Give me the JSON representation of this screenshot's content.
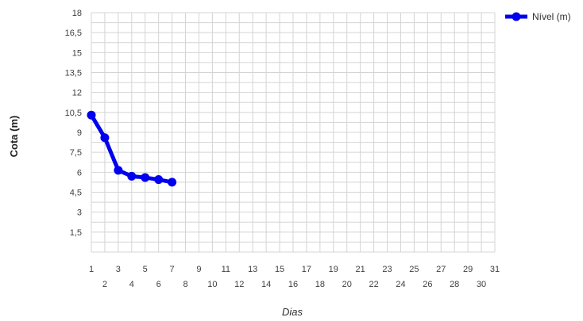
{
  "chart_data": {
    "type": "line",
    "title": "",
    "xlabel": "Dias",
    "ylabel": "Cota (m)",
    "xlim": [
      1,
      31
    ],
    "ylim": [
      0,
      18
    ],
    "grid": true,
    "legend_position": "top-right",
    "x_ticks_upper": [
      "1",
      "3",
      "5",
      "7",
      "9",
      "11",
      "13",
      "15",
      "17",
      "19",
      "21",
      "23",
      "25",
      "27",
      "29",
      "31"
    ],
    "x_ticks_lower": [
      "2",
      "4",
      "6",
      "8",
      "10",
      "12",
      "14",
      "16",
      "18",
      "20",
      "22",
      "24",
      "26",
      "28",
      "30"
    ],
    "y_ticks": [
      "1,5",
      "3",
      "4,5",
      "6",
      "7,5",
      "9",
      "10,5",
      "12",
      "13,5",
      "15",
      "16,5",
      "18"
    ],
    "series": [
      {
        "name": "Nível (m)",
        "color": "#0000ee",
        "x": [
          1,
          2,
          3,
          4,
          5,
          6,
          7
        ],
        "y": [
          10.3,
          8.6,
          6.15,
          5.7,
          5.6,
          5.45,
          5.25
        ]
      }
    ]
  }
}
